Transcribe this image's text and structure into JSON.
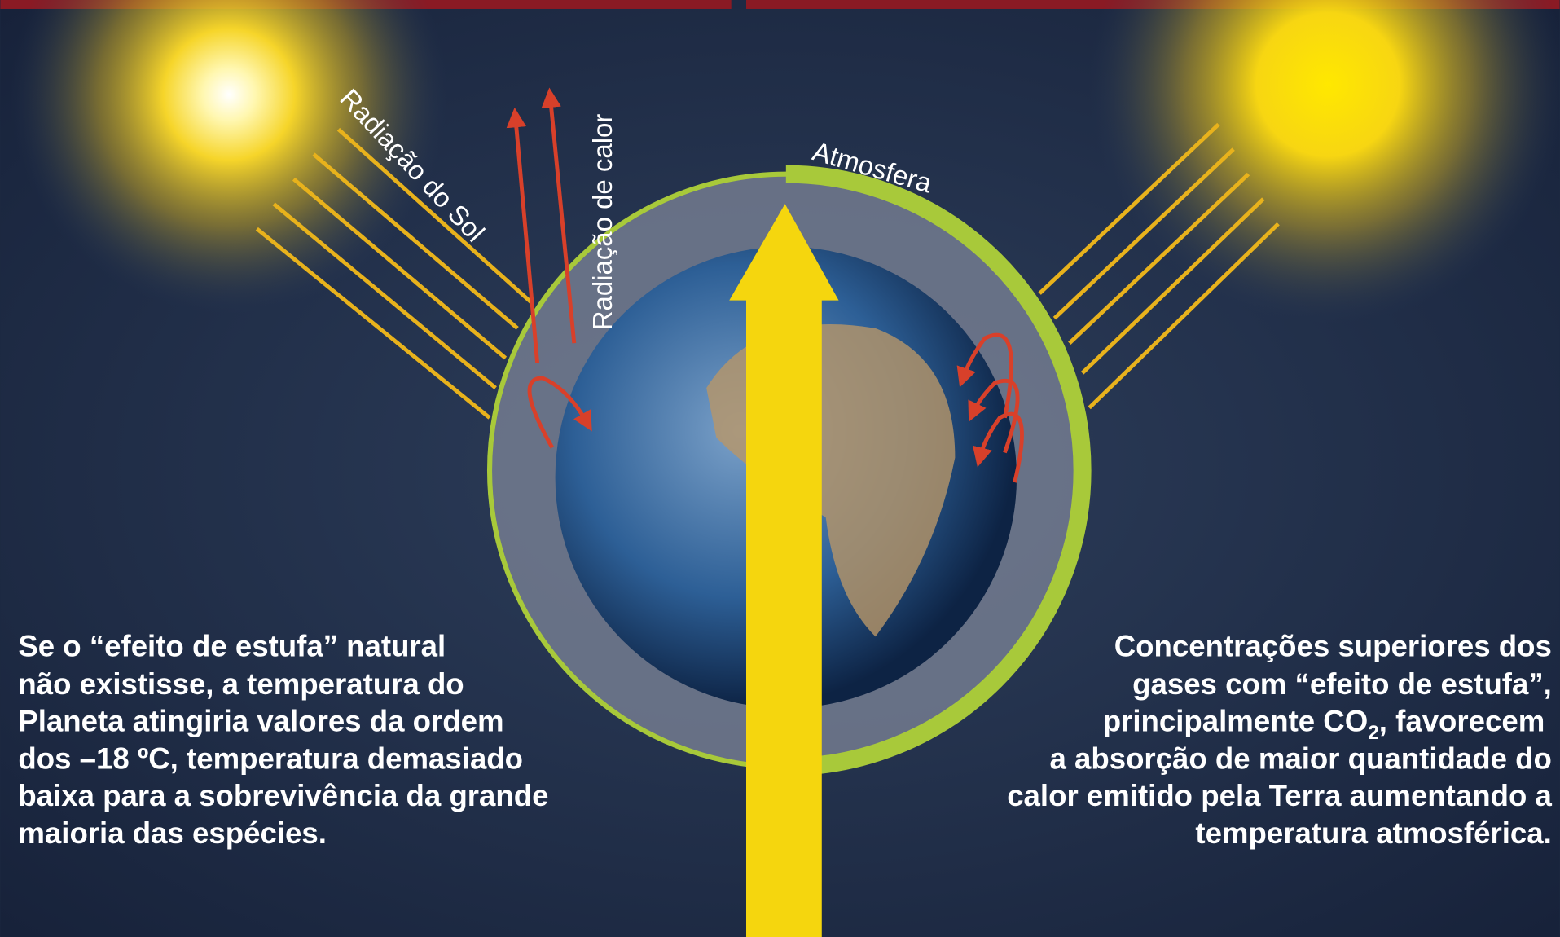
{
  "labels": {
    "sun_radiation": "Radiação do Sol",
    "heat_radiation": "Radiação de calor",
    "atmosphere": "Atmosfera"
  },
  "left_text": [
    "Se o “efeito de estufa” natural",
    "não existisse, a temperatura do",
    "Planeta atingiria valores da ordem",
    "dos –18 ºC, temperatura demasiado",
    "baixa para a sobrevivência da grande",
    "maioria das espécies."
  ],
  "right_text": {
    "line1": "Concentrações superiores dos",
    "line2": "gases com “efeito de estufa”,",
    "line3": {
      "before": "principalmente CO",
      "sub": "2",
      "after": ", favorecem"
    },
    "line4": "a absorção de maior quantidade do",
    "line5": "calor emitido pela Terra aumentando a",
    "line6": "temperatura atmosférica."
  }
}
